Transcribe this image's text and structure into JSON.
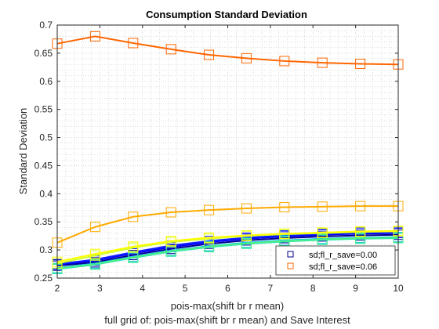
{
  "chart_data": {
    "type": "line",
    "title": "Consumption Standard Deviation",
    "xlabel": "pois-max(shift br r mean)",
    "xlabel2": "full grid of: pois-max(shift br r mean) and Save Interest",
    "ylabel": "Standard Deviation",
    "xlim": [
      2,
      10
    ],
    "ylim": [
      0.25,
      0.7
    ],
    "xticks": [
      "2",
      "3",
      "4",
      "5",
      "6",
      "7",
      "8",
      "9",
      "10"
    ],
    "yticks": [
      "0.25",
      "0.3",
      "0.35",
      "0.4",
      "0.45",
      "0.5",
      "0.55",
      "0.6",
      "0.65",
      "0.7"
    ],
    "grid": "on (minor dotted)",
    "legend_position": "bottom-right",
    "marker": "square",
    "x": [
      2,
      2.89,
      3.78,
      4.67,
      5.56,
      6.44,
      7.33,
      8.22,
      9.11,
      10
    ],
    "series": [
      {
        "name": "sd;fl_r_save=0.00",
        "color": "#00008f",
        "legend": true,
        "values": [
          0.272,
          0.278,
          0.291,
          0.302,
          0.311,
          0.317,
          0.321,
          0.324,
          0.326,
          0.327
        ]
      },
      {
        "color": "#0000ff",
        "values": [
          0.274,
          0.281,
          0.294,
          0.305,
          0.314,
          0.32,
          0.324,
          0.327,
          0.329,
          0.33
        ]
      },
      {
        "color": "#0f1fff",
        "values": [
          0.275,
          0.283,
          0.296,
          0.308,
          0.316,
          0.322,
          0.326,
          0.329,
          0.331,
          0.332
        ]
      },
      {
        "color": "#00bfff",
        "values": [
          0.268,
          0.276,
          0.288,
          0.299,
          0.307,
          0.313,
          0.317,
          0.32,
          0.322,
          0.323
        ]
      },
      {
        "color": "#20e0c0",
        "values": [
          0.266,
          0.274,
          0.286,
          0.297,
          0.305,
          0.311,
          0.315,
          0.318,
          0.32,
          0.321
        ]
      },
      {
        "color": "#50f080",
        "values": [
          0.267,
          0.275,
          0.287,
          0.298,
          0.306,
          0.312,
          0.316,
          0.319,
          0.321,
          0.322
        ]
      },
      {
        "color": "#d0ff30",
        "values": [
          0.276,
          0.29,
          0.304,
          0.314,
          0.32,
          0.325,
          0.328,
          0.33,
          0.332,
          0.333
        ]
      },
      {
        "color": "#ffff00",
        "values": [
          0.279,
          0.293,
          0.306,
          0.316,
          0.322,
          0.326,
          0.329,
          0.331,
          0.333,
          0.334
        ]
      },
      {
        "color": "#ffaa00",
        "values": [
          0.313,
          0.341,
          0.359,
          0.367,
          0.371,
          0.374,
          0.376,
          0.377,
          0.378,
          0.378
        ]
      },
      {
        "name": "sd;fl_r_save=0.06",
        "color": "#ff6600",
        "legend": true,
        "values": [
          0.667,
          0.68,
          0.668,
          0.657,
          0.647,
          0.641,
          0.636,
          0.633,
          0.631,
          0.63
        ]
      }
    ]
  }
}
